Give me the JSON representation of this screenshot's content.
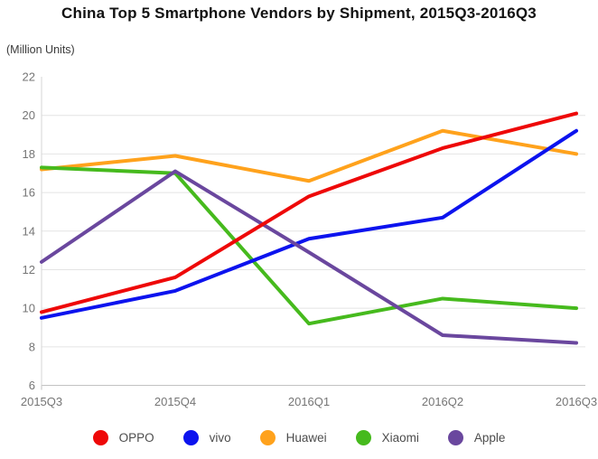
{
  "chart_data": {
    "type": "line",
    "title": "China Top 5 Smartphone Vendors by Shipment, 2015Q3-2016Q3",
    "ylabel": "(Million Units)",
    "categories": [
      "2015Q3",
      "2015Q4",
      "2016Q1",
      "2016Q2",
      "2016Q3"
    ],
    "series": [
      {
        "name": "OPPO",
        "color": "#ee0808",
        "values": [
          9.8,
          11.6,
          15.8,
          18.3,
          20.1
        ]
      },
      {
        "name": "vivo",
        "color": "#0c13ee",
        "values": [
          9.5,
          10.9,
          13.6,
          14.7,
          19.2
        ]
      },
      {
        "name": "Huawei",
        "color": "#ffa21c",
        "values": [
          17.2,
          17.9,
          16.6,
          19.2,
          18.0
        ]
      },
      {
        "name": "Xiaomi",
        "color": "#46ba1d",
        "values": [
          17.3,
          17.0,
          9.2,
          10.5,
          10.0
        ]
      },
      {
        "name": "Apple",
        "color": "#6a479e",
        "values": [
          12.4,
          17.1,
          12.9,
          8.6,
          8.2
        ]
      }
    ],
    "ylim": [
      6,
      22
    ],
    "ytick_step": 2,
    "grid": true,
    "legend_position": "bottom"
  },
  "colors": {
    "gridline": "#e4e4e4",
    "axis_line": "#c2c2c2",
    "y_axis_line": "#d6d6d6",
    "tick_text": "#757575",
    "title_text": "#111111",
    "legend_text": "#4d4d4d"
  }
}
